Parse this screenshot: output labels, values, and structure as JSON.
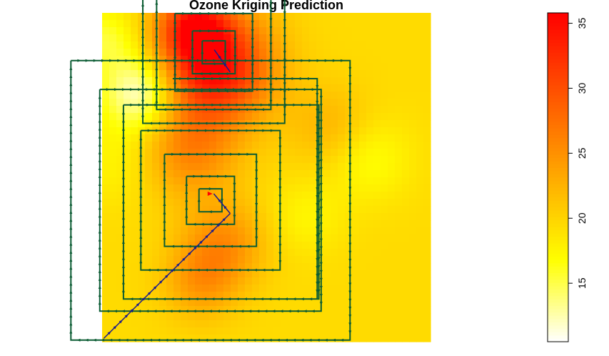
{
  "chart_data": {
    "type": "heatmap",
    "title": "Ozone Kriging Prediction",
    "colorbar": {
      "range": [
        10.5,
        35.8
      ],
      "ticks": [
        15,
        20,
        25,
        30,
        35
      ],
      "palette": "heat.colors (red-orange-yellow-white)",
      "orientation": "vertical, right side, labels rotated"
    },
    "axes_shown": false,
    "heat_field": {
      "x_range": [
        0,
        1
      ],
      "y_range": [
        0,
        1
      ],
      "base_value": 19.5,
      "hotspots": [
        {
          "x": 0.34,
          "y": 0.84,
          "value": 35.5,
          "spread": 0.12
        },
        {
          "x": 0.28,
          "y": 0.96,
          "value": 30.0,
          "spread": 0.07
        },
        {
          "x": 0.27,
          "y": 0.58,
          "value": 25.5,
          "spread": 0.1
        },
        {
          "x": 0.37,
          "y": 0.3,
          "value": 25.0,
          "spread": 0.09
        },
        {
          "x": 0.3,
          "y": 0.18,
          "value": 24.0,
          "spread": 0.08
        },
        {
          "x": 0.7,
          "y": 0.65,
          "value": 22.5,
          "spread": 0.09
        }
      ],
      "coldspots": [
        {
          "x": 0.12,
          "y": 0.76,
          "value": 10.5,
          "spread": 0.08
        },
        {
          "x": 0.81,
          "y": 0.56,
          "value": 16.5,
          "spread": 0.09
        },
        {
          "x": 0.01,
          "y": 0.92,
          "value": 15.5,
          "spread": 0.07
        },
        {
          "x": 0.04,
          "y": 0.55,
          "value": 17.5,
          "spread": 0.09
        },
        {
          "x": 0.62,
          "y": 0.38,
          "value": 17.5,
          "spread": 0.08
        }
      ]
    },
    "paths": {
      "description": "two square spiral search paths plus approach track",
      "outer_frame": {
        "x": [
          0.065,
          0.66
        ],
        "y": [
          0.13,
          0.72
        ]
      },
      "upper_frame": {
        "x": [
          0.215,
          0.655
        ],
        "y": [
          0.8,
          0.13
        ]
      },
      "upper_spiral": {
        "center": [
          0.34,
          0.88
        ],
        "levels": [
          0.216,
          0.174,
          0.118,
          0.065,
          0.035
        ]
      },
      "lower_spiral": {
        "center": [
          0.33,
          0.43
        ],
        "levels": [
          0.425,
          0.337,
          0.212,
          0.14,
          0.073,
          0.035
        ]
      },
      "approach_line": {
        "from": [
          0.005,
          0.01
        ],
        "to": [
          0.39,
          0.39
        ]
      },
      "green_color": "#0b5c33",
      "blue_color": "#1a1a8c",
      "red_color": "#ff0000"
    }
  }
}
